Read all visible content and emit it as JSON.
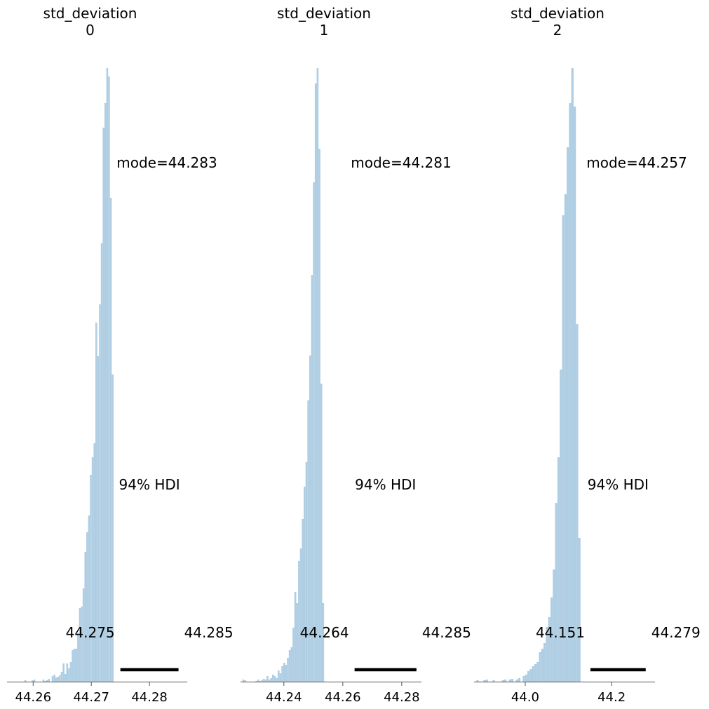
{
  "chart_data": [
    {
      "type": "histogram",
      "title_line1": "std_deviation",
      "title_line2": "0",
      "mode_label": "mode=44.283",
      "hdi_label": "94% HDI",
      "hdi_low_label": "44.275",
      "hdi_high_label": "44.285",
      "hdi": [
        44.275,
        44.285
      ],
      "xlim": [
        44.2555,
        44.2865
      ],
      "xticks": [
        44.26,
        44.27,
        44.28
      ],
      "xtick_labels": [
        "44.26",
        "44.27",
        "44.28"
      ],
      "ymax": 875,
      "bins_start": 44.2563,
      "bin_width": 0.000313,
      "counts": [
        0,
        0,
        0,
        0,
        0,
        0,
        0,
        2,
        0,
        0,
        0,
        2,
        3,
        0,
        0,
        0,
        0,
        3,
        1,
        2,
        4,
        0,
        8,
        10,
        6,
        7,
        9,
        14,
        26,
        11,
        26,
        19,
        28,
        45,
        47,
        47,
        69,
        105,
        107,
        133,
        185,
        213,
        237,
        295,
        320,
        340,
        512,
        464,
        538,
        625,
        790,
        825,
        875,
        863,
        690,
        438
      ]
    },
    {
      "type": "histogram",
      "title_line1": "std_deviation",
      "title_line2": "1",
      "mode_label": "mode=44.281",
      "hdi_label": "94% HDI",
      "hdi_low_label": "44.264",
      "hdi_high_label": "44.285",
      "hdi": [
        44.264,
        44.285
      ],
      "xlim": [
        44.2253,
        44.2867
      ],
      "xticks": [
        44.24,
        44.26,
        44.28
      ],
      "xtick_labels": [
        "44.24",
        "44.26",
        "44.28"
      ],
      "ymax": 875,
      "bins_start": 44.2253,
      "bin_width": 0.00063,
      "counts": [
        0,
        3,
        2,
        0,
        0,
        0,
        0,
        0,
        1,
        3,
        1,
        2,
        4,
        3,
        8,
        3,
        5,
        10,
        8,
        5,
        16,
        12,
        22,
        27,
        24,
        34,
        45,
        49,
        77,
        128,
        112,
        172,
        190,
        232,
        278,
        313,
        401,
        465,
        580,
        712,
        853,
        875,
        760,
        425,
        112
      ]
    },
    {
      "type": "histogram",
      "title_line1": "std_deviation",
      "title_line2": "2",
      "mode_label": "mode=44.257",
      "hdi_label": "94% HDI",
      "hdi_low_label": "44.151",
      "hdi_high_label": "44.279",
      "hdi": [
        44.151,
        44.279
      ],
      "xlim": [
        43.8815,
        44.3005
      ],
      "xticks": [
        44.0,
        44.2
      ],
      "xtick_labels": [
        "44.0",
        "44.2"
      ],
      "ymax": 875,
      "bins_start": 43.8815,
      "bin_width": 0.00536,
      "counts": [
        0,
        2,
        0,
        0,
        2,
        3,
        0,
        0,
        2,
        0,
        0,
        0,
        2,
        3,
        0,
        3,
        4,
        0,
        3,
        5,
        0,
        8,
        10,
        15,
        18,
        22,
        25,
        28,
        42,
        47,
        55,
        78,
        92,
        120,
        160,
        255,
        320,
        445,
        665,
        695,
        762,
        825,
        875,
        820,
        510,
        205
      ]
    }
  ]
}
